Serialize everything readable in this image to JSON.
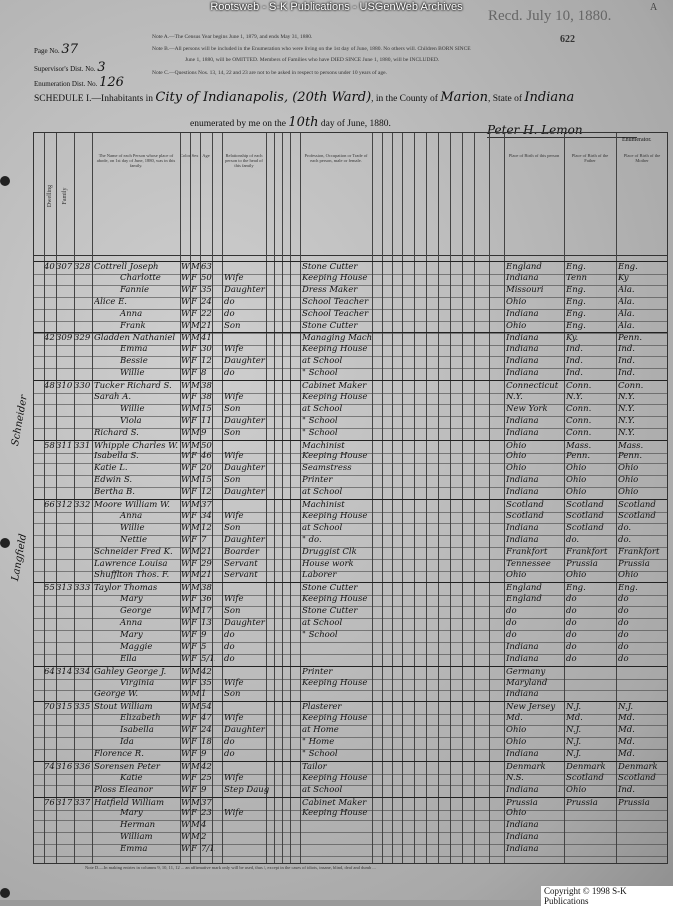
{
  "banner": "Rootsweb - S-K Publications - USGenWeb Archives",
  "stamp": "Recd. July 10, 1880.",
  "corner_mark": "A",
  "sheet_number": "622",
  "header": {
    "page_label": "Page No.",
    "page_value": "37",
    "supervisor_label": "Supervisor's Dist. No.",
    "supervisor_value": "3",
    "enum_label": "Enumeration Dist. No.",
    "enum_value": "126",
    "note_a": "Note A.—The Census Year begins June 1, 1879, and ends May 31, 1880.",
    "note_b1": "Note B.—All persons will be included in the Enumeration who were living on the 1st day of June, 1880. No others will. Children BORN SINCE",
    "note_b2": "June 1, 1880, will be OMITTED. Members of Families who have DIED SINCE June 1, 1880, will be INCLUDED.",
    "note_c": "Note C.—Questions Nos. 13, 14, 22 and 23 are not to be asked in respect to persons under 10 years of age.",
    "schedule_prefix": "SCHEDULE I.—Inhabitants in",
    "city": "City of Indianapolis, (20th Ward)",
    "county_prefix": ", in the County of",
    "county": "Marion",
    "state_prefix": ", State of",
    "state": "Indiana",
    "enum_prefix": "enumerated by me on the",
    "day": "10th",
    "enum_suffix": "day of June, 1880.",
    "enumerator": "Peter H. Lemon",
    "enumerator_label": "Enumerator."
  },
  "columns": [
    "Dwelling",
    "Family",
    "",
    "The Name of each Person whose place of abode, on 1st day of June, 1880, was in this family.",
    "Color",
    "Sex",
    "Age",
    "",
    "Relationship of each person to the head of this family",
    "",
    "",
    "",
    "",
    "Profession, Occupation or Trade of each person, male or female.",
    "",
    "",
    "",
    "",
    "",
    "",
    "",
    "",
    "",
    "Place of Birth of this person",
    "Place of Birth of the Father",
    "Place of Birth of the Mother"
  ],
  "rows": [
    [
      "40",
      "307",
      "328",
      "Cottrell Joseph",
      "W",
      "M",
      "63",
      "",
      "Stone Cutter",
      "England",
      "Eng.",
      "Eng."
    ],
    [
      "",
      "",
      "",
      "Charlotte",
      "W",
      "F",
      "50",
      "Wife",
      "Keeping House",
      "Indiana",
      "Tenn",
      "Ky"
    ],
    [
      "",
      "",
      "",
      "Fannie",
      "W",
      "F",
      "35",
      "Daughter",
      "Dress Maker",
      "Missouri",
      "Eng.",
      "Ala."
    ],
    [
      "",
      "",
      "",
      "Alice E.",
      "W",
      "F",
      "24",
      "do",
      "School Teacher",
      "Ohio",
      "Eng.",
      "Ala."
    ],
    [
      "",
      "",
      "",
      "Anna",
      "W",
      "F",
      "22",
      "do",
      "School Teacher",
      "Indiana",
      "Eng.",
      "Ala."
    ],
    [
      "",
      "",
      "",
      "Frank",
      "W",
      "M",
      "21",
      "Son",
      "Stone Cutter",
      "Ohio",
      "Eng.",
      "Ala."
    ],
    [
      "42",
      "309",
      "329",
      "Gladden Nathaniel",
      "W",
      "M",
      "41",
      "",
      "Managing Mach.",
      "Indiana",
      "Ky.",
      "Penn."
    ],
    [
      "",
      "",
      "",
      "Emma",
      "W",
      "F",
      "30",
      "Wife",
      "Keeping House",
      "Indiana",
      "Ind.",
      "Ind."
    ],
    [
      "",
      "",
      "",
      "Bessie",
      "W",
      "F",
      "12",
      "Daughter",
      "at School",
      "Indiana",
      "Ind.",
      "Ind."
    ],
    [
      "",
      "",
      "",
      "Willie",
      "W",
      "F",
      "8",
      "do",
      "\" School",
      "Indiana",
      "Ind.",
      "Ind."
    ],
    [
      "48",
      "310",
      "330",
      "Tucker Richard S.",
      "W",
      "M",
      "38",
      "",
      "Cabinet Maker",
      "Connecticut",
      "Conn.",
      "Conn."
    ],
    [
      "",
      "",
      "",
      "Sarah A.",
      "W",
      "F",
      "38",
      "Wife",
      "Keeping House",
      "N.Y.",
      "N.Y.",
      "N.Y."
    ],
    [
      "",
      "",
      "",
      "Willie",
      "W",
      "M",
      "15",
      "Son",
      "at School",
      "New York",
      "Conn.",
      "N.Y."
    ],
    [
      "",
      "",
      "",
      "Viola",
      "W",
      "F",
      "11",
      "Daughter",
      "\" School",
      "Indiana",
      "Conn.",
      "N.Y."
    ],
    [
      "",
      "",
      "",
      "Richard S.",
      "W",
      "M",
      "9",
      "Son",
      "\" School",
      "Indiana",
      "Conn.",
      "N.Y."
    ],
    [
      "58",
      "311",
      "331",
      "Whipple Charles W.",
      "W",
      "M",
      "50",
      "",
      "Machinist",
      "Ohio",
      "Mass.",
      "Mass."
    ],
    [
      "",
      "",
      "",
      "Isabella S.",
      "W",
      "F",
      "46",
      "Wife",
      "Keeping House",
      "Ohio",
      "Penn.",
      "Penn."
    ],
    [
      "",
      "",
      "",
      "Katie L.",
      "W",
      "F",
      "20",
      "Daughter",
      "Seamstress",
      "Ohio",
      "Ohio",
      "Ohio"
    ],
    [
      "",
      "",
      "",
      "Edwin S.",
      "W",
      "M",
      "15",
      "Son",
      "Printer",
      "Indiana",
      "Ohio",
      "Ohio"
    ],
    [
      "",
      "",
      "",
      "Bertha B.",
      "W",
      "F",
      "12",
      "Daughter",
      "at School",
      "Indiana",
      "Ohio",
      "Ohio"
    ],
    [
      "66",
      "312",
      "332",
      "Moore William W.",
      "W",
      "M",
      "37",
      "",
      "Machinist",
      "Scotland",
      "Scotland",
      "Scotland"
    ],
    [
      "",
      "",
      "",
      "Anna",
      "W",
      "F",
      "34",
      "Wife",
      "Keeping House",
      "Scotland",
      "Scotland",
      "Scotland"
    ],
    [
      "",
      "",
      "",
      "Willie",
      "W",
      "M",
      "12",
      "Son",
      "at School",
      "Indiana",
      "Scotland",
      "do."
    ],
    [
      "",
      "",
      "",
      "Nettie",
      "W",
      "F",
      "7",
      "Daughter",
      "\" do.",
      "Indiana",
      "do.",
      "do."
    ],
    [
      "",
      "",
      "",
      "Schneider Fred K.",
      "W",
      "M",
      "21",
      "Boarder",
      "Druggist Clk",
      "Frankfort",
      "Frankfort",
      "Frankfort"
    ],
    [
      "",
      "",
      "",
      "Lawrence Louisa",
      "W",
      "F",
      "29",
      "Servant",
      "House work",
      "Tennessee",
      "Prussia",
      "Prussia"
    ],
    [
      "",
      "",
      "",
      "Shufflton Thos. F.",
      "W",
      "M",
      "21",
      "Servant",
      "Laborer",
      "Ohio",
      "Ohio",
      "Ohio"
    ],
    [
      "55",
      "313",
      "333",
      "Taylor Thomas",
      "W",
      "M",
      "38",
      "",
      "Stone Cutter",
      "England",
      "Eng.",
      "Eng."
    ],
    [
      "",
      "",
      "",
      "Mary",
      "W",
      "F",
      "36",
      "Wife",
      "Keeping House",
      "England",
      "do",
      "do"
    ],
    [
      "",
      "",
      "",
      "George",
      "W",
      "M",
      "17",
      "Son",
      "Stone Cutter",
      "do",
      "do",
      "do"
    ],
    [
      "",
      "",
      "",
      "Anna",
      "W",
      "F",
      "13",
      "Daughter",
      "at School",
      "do",
      "do",
      "do"
    ],
    [
      "",
      "",
      "",
      "Mary",
      "W",
      "F",
      "9",
      "do",
      "\" School",
      "do",
      "do",
      "do"
    ],
    [
      "",
      "",
      "",
      "Maggie",
      "W",
      "F",
      "5",
      "do",
      "",
      "Indiana",
      "do",
      "do"
    ],
    [
      "",
      "",
      "",
      "Ella",
      "W",
      "F",
      "5/12",
      "do",
      "",
      "Indiana",
      "do",
      "do"
    ],
    [
      "64",
      "314",
      "334",
      "Gahley George J.",
      "W",
      "M",
      "42",
      "",
      "Printer",
      "Germany",
      "",
      ""
    ],
    [
      "",
      "",
      "",
      "Virginia",
      "W",
      "F",
      "35",
      "Wife",
      "Keeping House",
      "Maryland",
      "",
      ""
    ],
    [
      "",
      "",
      "",
      "George W.",
      "W",
      "M",
      "1",
      "Son",
      "",
      "Indiana",
      "",
      ""
    ],
    [
      "70",
      "315",
      "335",
      "Stout William",
      "W",
      "M",
      "54",
      "",
      "Plasterer",
      "New Jersey",
      "N.J.",
      "N.J."
    ],
    [
      "",
      "",
      "",
      "Elizabeth",
      "W",
      "F",
      "47",
      "Wife",
      "Keeping House",
      "Md.",
      "Md.",
      "Md."
    ],
    [
      "",
      "",
      "",
      "Isabella",
      "W",
      "F",
      "24",
      "Daughter",
      "at Home",
      "Ohio",
      "N.J.",
      "Md."
    ],
    [
      "",
      "",
      "",
      "Ida",
      "W",
      "F",
      "18",
      "do",
      "\" Home",
      "Ohio",
      "N.J.",
      "Md."
    ],
    [
      "",
      "",
      "",
      "Florence R.",
      "W",
      "F",
      "9",
      "do",
      "\" School",
      "Indiana",
      "N.J.",
      "Md."
    ],
    [
      "74",
      "316",
      "336",
      "Sorensen Peter",
      "W",
      "M",
      "42",
      "",
      "Tailor",
      "Denmark",
      "Denmark",
      "Denmark"
    ],
    [
      "",
      "",
      "",
      "Katie",
      "W",
      "F",
      "25",
      "Wife",
      "Keeping House",
      "N.S.",
      "Scotland",
      "Scotland"
    ],
    [
      "",
      "",
      "",
      "Ploss Eleanor",
      "W",
      "F",
      "9",
      "Step Daughter",
      "at School",
      "Indiana",
      "Ohio",
      "Ind."
    ],
    [
      "76",
      "317",
      "337",
      "Hatfield William",
      "W",
      "M",
      "37",
      "",
      "Cabinet Maker",
      "Prussia",
      "Prussia",
      "Prussia"
    ],
    [
      "",
      "",
      "",
      "Mary",
      "W",
      "F",
      "23",
      "Wife",
      "Keeping House",
      "Ohio",
      "",
      ""
    ],
    [
      "",
      "",
      "",
      "Herman",
      "W",
      "M",
      "4",
      "",
      "",
      "Indiana",
      "",
      ""
    ],
    [
      "",
      "",
      "",
      "William",
      "W",
      "M",
      "2",
      "",
      "",
      "Indiana",
      "",
      ""
    ],
    [
      "",
      "",
      "",
      "Emma",
      "W",
      "F",
      "7/12",
      "",
      "",
      "Indiana",
      "",
      ""
    ]
  ],
  "side_notes": [
    "Schneider",
    "Langfield"
  ],
  "footer_notes": "Note D.—In making entries in columns 9, 10, 11, 12 ... an affirmative mark only will be used, thus /, except in the cases of idiots, insane, blind, deaf and dumb ...",
  "copyright": "Copyright © 1998 S-K Publications"
}
